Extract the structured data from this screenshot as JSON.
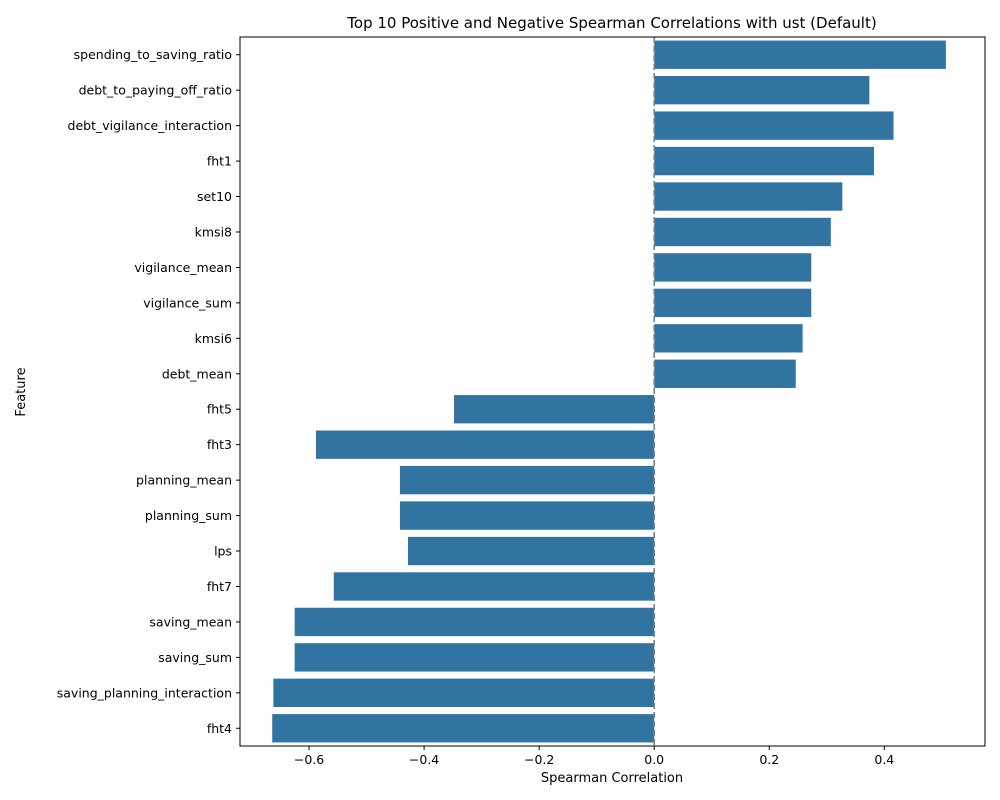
{
  "chart_data": {
    "type": "bar",
    "orientation": "horizontal",
    "title": "Top 10 Positive and Negative Spearman Correlations with ust (Default)",
    "xlabel": "Spearman Correlation",
    "ylabel": "Feature",
    "xlim": [
      -0.72,
      0.575
    ],
    "xticks": [
      -0.6,
      -0.4,
      -0.2,
      0.0,
      0.2,
      0.4
    ],
    "xtick_labels": [
      "−0.6",
      "−0.4",
      "−0.2",
      "0.0",
      "0.2",
      "0.4"
    ],
    "bar_color": "#3274a1",
    "reference_line": {
      "x": 0,
      "style": "dashed",
      "color": "#808080"
    },
    "grid": false,
    "categories": [
      "spending_to_saving_ratio",
      "debt_to_paying_off_ratio",
      "debt_vigilance_interaction",
      "fht1",
      "set10",
      "kmsi8",
      "vigilance_mean",
      "vigilance_sum",
      "kmsi6",
      "debt_mean",
      "fht5",
      "fht3",
      "planning_mean",
      "planning_sum",
      "lps",
      "fht7",
      "saving_mean",
      "saving_sum",
      "saving_planning_interaction",
      "fht4"
    ],
    "values": [
      0.507,
      0.374,
      0.416,
      0.382,
      0.327,
      0.307,
      0.273,
      0.273,
      0.258,
      0.246,
      -0.348,
      -0.588,
      -0.442,
      -0.442,
      -0.428,
      -0.557,
      -0.625,
      -0.625,
      -0.662,
      -0.664
    ]
  }
}
